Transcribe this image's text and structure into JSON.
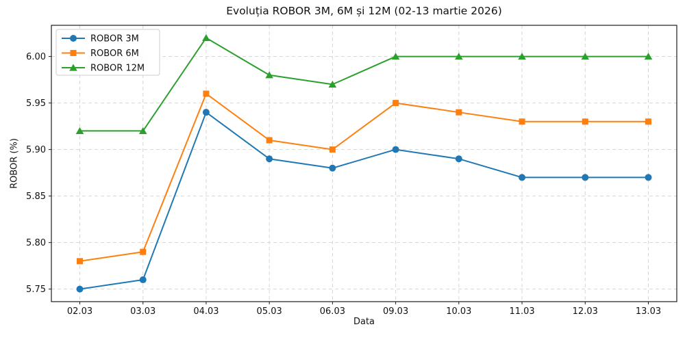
{
  "chart_data": {
    "type": "line",
    "title": "Evoluția ROBOR 3M, 6M și 12M (02-13 martie 2026)",
    "xlabel": "Data",
    "ylabel": "ROBOR (%)",
    "categories": [
      "02.03",
      "03.03",
      "04.03",
      "05.03",
      "06.03",
      "09.03",
      "10.03",
      "11.03",
      "12.03",
      "13.03"
    ],
    "series": [
      {
        "name": "ROBOR 3M",
        "color": "#1f77b4",
        "marker": "circle",
        "values": [
          5.75,
          5.76,
          5.94,
          5.89,
          5.88,
          5.9,
          5.89,
          5.87,
          5.87,
          5.87
        ]
      },
      {
        "name": "ROBOR 6M",
        "color": "#ff7f0e",
        "marker": "square",
        "values": [
          5.78,
          5.79,
          5.96,
          5.91,
          5.9,
          5.95,
          5.94,
          5.93,
          5.93,
          5.93
        ]
      },
      {
        "name": "ROBOR 12M",
        "color": "#2ca02c",
        "marker": "triangle",
        "values": [
          5.92,
          5.92,
          6.02,
          5.98,
          5.97,
          6.0,
          6.0,
          6.0,
          6.0,
          6.0
        ]
      }
    ],
    "yticks": [
      5.75,
      5.8,
      5.85,
      5.9,
      5.95,
      6.0
    ],
    "ylim": [
      5.7365,
      6.0335
    ],
    "grid": true,
    "grid_style": "dashed",
    "grid_color": "#d5d5d5",
    "spine_color": "#1a1a1a",
    "legend_position": "upper left",
    "legend_border_color": "#cccccc"
  }
}
